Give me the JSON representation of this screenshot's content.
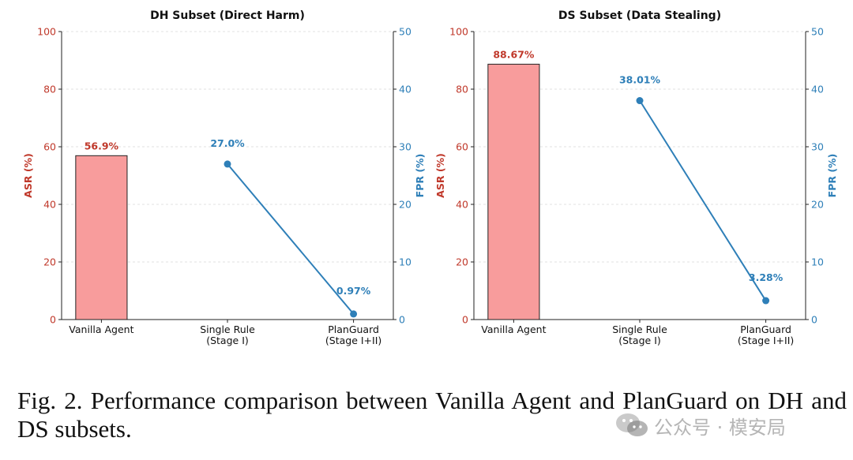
{
  "chart_data": [
    {
      "type": "bar+line",
      "title": "DH Subset (Direct Harm)",
      "categories": [
        "Vanilla Agent",
        "Single Rule\n(Stage I)",
        "PlanGuard\n(Stage I+II)"
      ],
      "left_axis": {
        "label": "ASR (%)",
        "ylim": [
          0,
          100
        ],
        "ticks": [
          0,
          20,
          40,
          60,
          80,
          100
        ],
        "color": "#c0392b"
      },
      "right_axis": {
        "label": "FPR (%)",
        "ylim": [
          0,
          50
        ],
        "ticks": [
          0,
          10,
          20,
          30,
          40,
          50
        ],
        "color": "#2e7fb8"
      },
      "bar": {
        "category": "Vanilla Agent",
        "value": 56.9,
        "label": "56.9%",
        "color": "#f89c9c"
      },
      "line": {
        "categories": [
          "Single Rule\n(Stage I)",
          "PlanGuard\n(Stage I+II)"
        ],
        "values": [
          27.0,
          0.97
        ],
        "labels": [
          "27.0%",
          "0.97%"
        ],
        "color": "#2e7fb8"
      },
      "grid": true
    },
    {
      "type": "bar+line",
      "title": "DS Subset (Data Stealing)",
      "categories": [
        "Vanilla Agent",
        "Single Rule\n(Stage I)",
        "PlanGuard\n(Stage I+II)"
      ],
      "left_axis": {
        "label": "ASR (%)",
        "ylim": [
          0,
          100
        ],
        "ticks": [
          0,
          20,
          40,
          60,
          80,
          100
        ],
        "color": "#c0392b"
      },
      "right_axis": {
        "label": "FPR (%)",
        "ylim": [
          0,
          50
        ],
        "ticks": [
          0,
          10,
          20,
          30,
          40,
          50
        ],
        "color": "#2e7fb8"
      },
      "bar": {
        "category": "Vanilla Agent",
        "value": 88.67,
        "label": "88.67%",
        "color": "#f89c9c"
      },
      "line": {
        "categories": [
          "Single Rule\n(Stage I)",
          "PlanGuard\n(Stage I+II)"
        ],
        "values": [
          38.01,
          3.28
        ],
        "labels": [
          "38.01%",
          "3.28%"
        ],
        "color": "#2e7fb8"
      },
      "grid": true
    }
  ],
  "caption": "Fig. 2.  Performance comparison between Vanilla Agent and PlanGuard on DH and DS subsets.",
  "watermark": {
    "text": "公众号 · 模安局",
    "icon": "wechat-icon"
  }
}
